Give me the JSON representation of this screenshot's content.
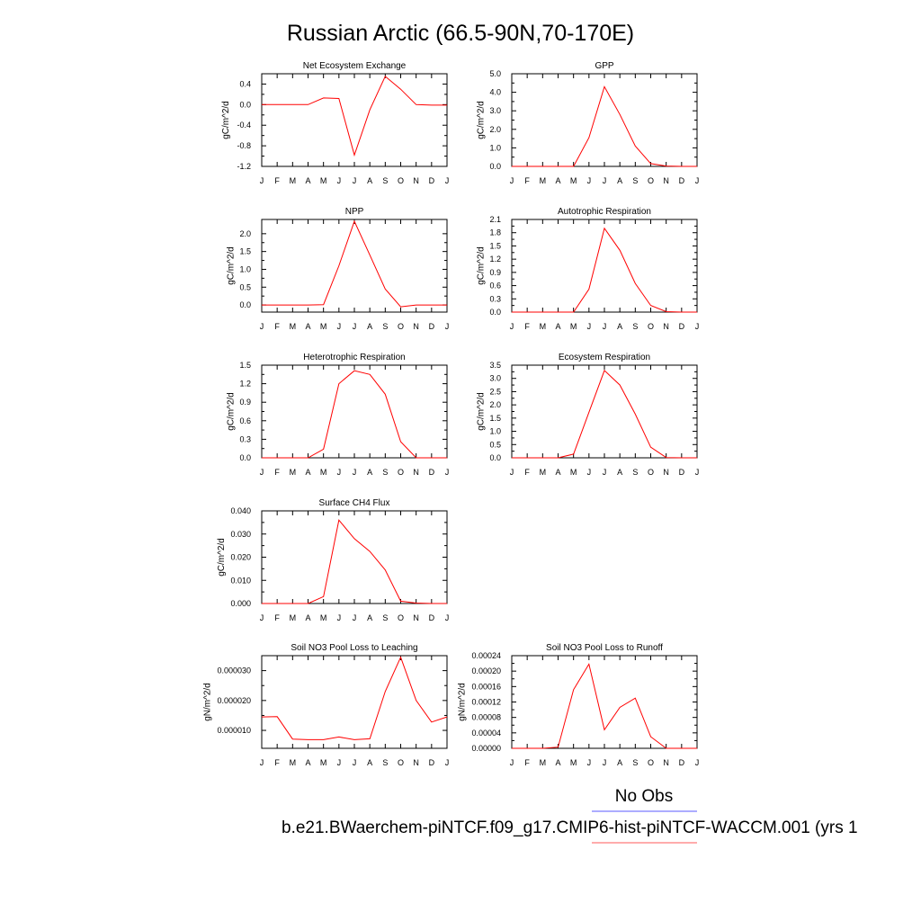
{
  "figure": {
    "title": "Russian Arctic (66.5-90N,70-170E)",
    "legend_obs_label": "No Obs",
    "legend_model_label": "b.e21.BWaerchem-piNTCF.f09_g17.CMIP6-hist-piNTCF-WACCM.001 (yrs 1",
    "obs_color": "#5a5aff",
    "model_color": "#ff0000",
    "model_line_color": "#ff9090"
  },
  "chart_data": [
    {
      "type": "line",
      "title": "Net Ecosystem Exchange",
      "ylabel": "gC/m^2/d",
      "categories": [
        "J",
        "F",
        "M",
        "A",
        "M",
        "J",
        "J",
        "A",
        "S",
        "O",
        "N",
        "D",
        "J"
      ],
      "values": [
        0.0,
        0.0,
        0.0,
        0.0,
        0.13,
        0.12,
        -0.98,
        -0.1,
        0.55,
        0.3,
        0.0,
        -0.01,
        -0.01
      ],
      "ylim": [
        -1.2,
        0.6
      ],
      "yticks": [
        "0.4",
        "0.0",
        "-0.4",
        "-0.8",
        "-1.2"
      ],
      "ytick_values": [
        0.4,
        0.0,
        -0.4,
        -0.8,
        -1.2
      ]
    },
    {
      "type": "line",
      "title": "GPP",
      "ylabel": "gC/m^2/d",
      "categories": [
        "J",
        "F",
        "M",
        "A",
        "M",
        "J",
        "J",
        "A",
        "S",
        "O",
        "N",
        "D",
        "J"
      ],
      "values": [
        0.0,
        0.0,
        0.0,
        0.0,
        0.0,
        1.55,
        4.3,
        2.8,
        1.1,
        0.15,
        0.02,
        0.0,
        0.0
      ],
      "ylim": [
        0.0,
        5.0
      ],
      "yticks": [
        "5.0",
        "4.0",
        "3.0",
        "2.0",
        "1.0",
        "0.0"
      ],
      "ytick_values": [
        5.0,
        4.0,
        3.0,
        2.0,
        1.0,
        0.0
      ]
    },
    {
      "type": "line",
      "title": "NPP",
      "ylabel": "gC/m^2/d",
      "categories": [
        "J",
        "F",
        "M",
        "A",
        "M",
        "J",
        "J",
        "A",
        "S",
        "O",
        "N",
        "D",
        "J"
      ],
      "values": [
        0.0,
        0.0,
        0.0,
        0.0,
        0.01,
        1.1,
        2.35,
        1.4,
        0.45,
        -0.05,
        0.0,
        0.0,
        0.0
      ],
      "ylim": [
        -0.2,
        2.4
      ],
      "yticks": [
        "2.0",
        "1.5",
        "1.0",
        "0.5",
        "0.0"
      ],
      "ytick_values": [
        2.0,
        1.5,
        1.0,
        0.5,
        0.0
      ]
    },
    {
      "type": "line",
      "title": "Autotrophic Respiration",
      "ylabel": "gC/m^2/d",
      "categories": [
        "J",
        "F",
        "M",
        "A",
        "M",
        "J",
        "J",
        "A",
        "S",
        "O",
        "N",
        "D",
        "J"
      ],
      "values": [
        0.0,
        0.0,
        0.0,
        0.0,
        0.0,
        0.52,
        1.9,
        1.4,
        0.65,
        0.15,
        0.01,
        0.0,
        0.0
      ],
      "ylim": [
        0.0,
        2.1
      ],
      "yticks": [
        "2.1",
        "1.8",
        "1.5",
        "1.2",
        "0.9",
        "0.6",
        "0.3",
        "0.0"
      ],
      "ytick_values": [
        2.1,
        1.8,
        1.5,
        1.2,
        0.9,
        0.6,
        0.3,
        0.0
      ]
    },
    {
      "type": "line",
      "title": "Heterotrophic Respiration",
      "ylabel": "gC/m^2/d",
      "categories": [
        "J",
        "F",
        "M",
        "A",
        "M",
        "J",
        "J",
        "A",
        "S",
        "O",
        "N",
        "D",
        "J"
      ],
      "values": [
        0.0,
        0.0,
        0.0,
        0.0,
        0.14,
        1.2,
        1.41,
        1.35,
        1.03,
        0.26,
        0.0,
        0.0,
        0.0
      ],
      "ylim": [
        0.0,
        1.5
      ],
      "yticks": [
        "1.5",
        "1.2",
        "0.9",
        "0.6",
        "0.3",
        "0.0"
      ],
      "ytick_values": [
        1.5,
        1.2,
        0.9,
        0.6,
        0.3,
        0.0
      ]
    },
    {
      "type": "line",
      "title": "Ecosystem Respiration",
      "ylabel": "gC/m^2/d",
      "categories": [
        "J",
        "F",
        "M",
        "A",
        "M",
        "J",
        "J",
        "A",
        "S",
        "O",
        "N",
        "D",
        "J"
      ],
      "values": [
        0.0,
        0.0,
        0.0,
        0.0,
        0.14,
        1.72,
        3.3,
        2.75,
        1.65,
        0.4,
        0.01,
        0.0,
        0.0
      ],
      "ylim": [
        0.0,
        3.5
      ],
      "yticks": [
        "3.5",
        "3.0",
        "2.5",
        "2.0",
        "1.5",
        "1.0",
        "0.5",
        "0.0"
      ],
      "ytick_values": [
        3.5,
        3.0,
        2.5,
        2.0,
        1.5,
        1.0,
        0.5,
        0.0
      ]
    },
    {
      "type": "line",
      "title": "Surface CH4 Flux",
      "ylabel": "gC/m^2/d",
      "categories": [
        "J",
        "F",
        "M",
        "A",
        "M",
        "J",
        "J",
        "A",
        "S",
        "O",
        "N",
        "D",
        "J"
      ],
      "values": [
        0.0,
        0.0,
        0.0,
        0.0,
        0.003,
        0.036,
        0.028,
        0.0225,
        0.0145,
        0.001,
        0.0002,
        0.0,
        0.0
      ],
      "ylim": [
        0.0,
        0.04
      ],
      "yticks": [
        "0.040",
        "0.030",
        "0.020",
        "0.010",
        "0.000"
      ],
      "ytick_values": [
        0.04,
        0.03,
        0.02,
        0.01,
        0.0
      ]
    },
    {
      "type": "line",
      "title": "Soil NO3 Pool Loss to Leaching",
      "ylabel": "gN/m^2/d",
      "categories": [
        "J",
        "F",
        "M",
        "A",
        "M",
        "J",
        "J",
        "A",
        "S",
        "O",
        "N",
        "D",
        "J"
      ],
      "values": [
        1.45e-05,
        1.46e-05,
        7.1e-06,
        6.9e-06,
        6.9e-06,
        7.8e-06,
        6.9e-06,
        7.2e-06,
        2.3e-05,
        3.45e-05,
        2e-05,
        1.28e-05,
        1.45e-05
      ],
      "ylim": [
        4e-06,
        3.5e-05
      ],
      "yticks": [
        "0.000030",
        "0.000020",
        "0.000010"
      ],
      "ytick_values": [
        3e-05,
        2e-05,
        1e-05
      ]
    },
    {
      "type": "line",
      "title": "Soil NO3 Pool Loss to Runoff",
      "ylabel": "gN/m^2/d",
      "categories": [
        "J",
        "F",
        "M",
        "A",
        "M",
        "J",
        "J",
        "A",
        "S",
        "O",
        "N",
        "D",
        "J"
      ],
      "values": [
        0.0,
        0.0,
        0.0,
        3e-06,
        0.000152,
        0.000218,
        4.8e-05,
        0.000106,
        0.00013,
        3e-05,
        0.0,
        0.0,
        0.0
      ],
      "ylim": [
        0.0,
        0.00024
      ],
      "yticks": [
        "0.00024",
        "0.00020",
        "0.00016",
        "0.00012",
        "0.00008",
        "0.00004",
        "0.00000"
      ],
      "ytick_values": [
        0.00024,
        0.0002,
        0.00016,
        0.00012,
        8e-05,
        4e-05,
        0.0
      ]
    }
  ]
}
